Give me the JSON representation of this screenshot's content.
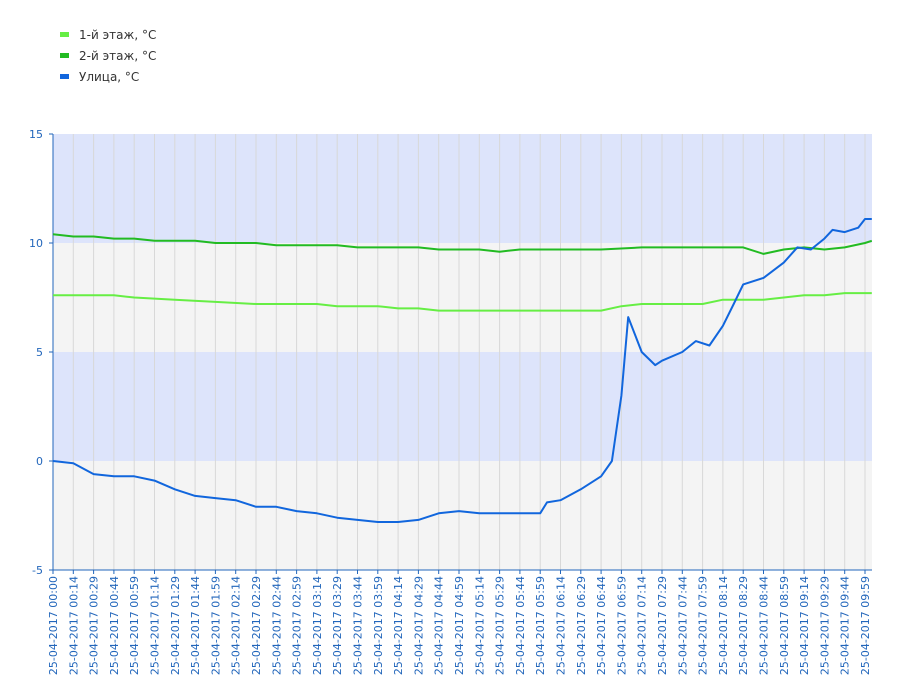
{
  "chart_data": {
    "type": "line",
    "title": "",
    "xlabel": "",
    "ylabel": "",
    "ylim": [
      -5,
      15
    ],
    "yticks": [
      15,
      10,
      5,
      0,
      -5
    ],
    "x_tick_labels": [
      "25-04-2017 00:00",
      "25-04-2017 00:14",
      "25-04-2017 00:29",
      "25-04-2017 00:44",
      "25-04-2017 00:59",
      "25-04-2017 01:14",
      "25-04-2017 01:29",
      "25-04-2017 01:44",
      "25-04-2017 01:59",
      "25-04-2017 02:14",
      "25-04-2017 02:29",
      "25-04-2017 02:44",
      "25-04-2017 02:59",
      "25-04-2017 03:14",
      "25-04-2017 03:29",
      "25-04-2017 03:44",
      "25-04-2017 03:59",
      "25-04-2017 04:14",
      "25-04-2017 04:29",
      "25-04-2017 04:44",
      "25-04-2017 04:59",
      "25-04-2017 05:14",
      "25-04-2017 05:29",
      "25-04-2017 05:44",
      "25-04-2017 05:59",
      "25-04-2017 06:14",
      "25-04-2017 06:29",
      "25-04-2017 06:44",
      "25-04-2017 06:59",
      "25-04-2017 07:14",
      "25-04-2017 07:29",
      "25-04-2017 07:44",
      "25-04-2017 07:59",
      "25-04-2017 08:14",
      "25-04-2017 08:29",
      "25-04-2017 08:44",
      "25-04-2017 08:59",
      "25-04-2017 09:14",
      "25-04-2017 09:29",
      "25-04-2017 09:44",
      "25-04-2017 09:59"
    ],
    "grid": true,
    "legend_position": "top-left",
    "band_colors": [
      "#dde4fb",
      "#f4f4f4"
    ],
    "series": [
      {
        "name": "1-й этаж, °C",
        "color": "#66ee44",
        "points": [
          [
            "25-04-2017 00:00",
            7.6
          ],
          [
            "25-04-2017 00:44",
            7.6
          ],
          [
            "25-04-2017 00:59",
            7.5
          ],
          [
            "25-04-2017 01:29",
            7.4
          ],
          [
            "25-04-2017 01:59",
            7.3
          ],
          [
            "25-04-2017 02:29",
            7.2
          ],
          [
            "25-04-2017 03:14",
            7.2
          ],
          [
            "25-04-2017 03:29",
            7.1
          ],
          [
            "25-04-2017 03:59",
            7.1
          ],
          [
            "25-04-2017 04:14",
            7.0
          ],
          [
            "25-04-2017 04:29",
            7.0
          ],
          [
            "25-04-2017 04:44",
            6.9
          ],
          [
            "25-04-2017 05:14",
            6.9
          ],
          [
            "25-04-2017 05:59",
            6.9
          ],
          [
            "25-04-2017 06:44",
            6.9
          ],
          [
            "25-04-2017 06:59",
            7.1
          ],
          [
            "25-04-2017 07:14",
            7.2
          ],
          [
            "25-04-2017 07:44",
            7.2
          ],
          [
            "25-04-2017 07:59",
            7.2
          ],
          [
            "25-04-2017 08:14",
            7.4
          ],
          [
            "25-04-2017 08:29",
            7.4
          ],
          [
            "25-04-2017 08:44",
            7.4
          ],
          [
            "25-04-2017 08:59",
            7.5
          ],
          [
            "25-04-2017 09:14",
            7.6
          ],
          [
            "25-04-2017 09:29",
            7.6
          ],
          [
            "25-04-2017 09:44",
            7.7
          ],
          [
            "25-04-2017 09:59",
            7.7
          ],
          [
            "25-04-2017 10:04",
            7.7
          ]
        ]
      },
      {
        "name": "2-й этаж, °C",
        "color": "#22bb22",
        "points": [
          [
            "25-04-2017 00:00",
            10.4
          ],
          [
            "25-04-2017 00:14",
            10.3
          ],
          [
            "25-04-2017 00:29",
            10.3
          ],
          [
            "25-04-2017 00:44",
            10.2
          ],
          [
            "25-04-2017 00:59",
            10.2
          ],
          [
            "25-04-2017 01:14",
            10.1
          ],
          [
            "25-04-2017 01:44",
            10.1
          ],
          [
            "25-04-2017 01:59",
            10.0
          ],
          [
            "25-04-2017 02:29",
            10.0
          ],
          [
            "25-04-2017 02:44",
            9.9
          ],
          [
            "25-04-2017 03:29",
            9.9
          ],
          [
            "25-04-2017 03:44",
            9.8
          ],
          [
            "25-04-2017 04:29",
            9.8
          ],
          [
            "25-04-2017 04:44",
            9.7
          ],
          [
            "25-04-2017 05:14",
            9.7
          ],
          [
            "25-04-2017 05:29",
            9.6
          ],
          [
            "25-04-2017 05:44",
            9.7
          ],
          [
            "25-04-2017 06:44",
            9.7
          ],
          [
            "25-04-2017 07:14",
            9.8
          ],
          [
            "25-04-2017 07:59",
            9.8
          ],
          [
            "25-04-2017 08:29",
            9.8
          ],
          [
            "25-04-2017 08:44",
            9.5
          ],
          [
            "25-04-2017 08:59",
            9.7
          ],
          [
            "25-04-2017 09:14",
            9.8
          ],
          [
            "25-04-2017 09:29",
            9.7
          ],
          [
            "25-04-2017 09:44",
            9.8
          ],
          [
            "25-04-2017 09:59",
            10.0
          ],
          [
            "25-04-2017 10:04",
            10.1
          ]
        ]
      },
      {
        "name": "Улица, °C",
        "color": "#1166dd",
        "points": [
          [
            "25-04-2017 00:00",
            0.0
          ],
          [
            "25-04-2017 00:14",
            -0.1
          ],
          [
            "25-04-2017 00:29",
            -0.6
          ],
          [
            "25-04-2017 00:44",
            -0.7
          ],
          [
            "25-04-2017 00:59",
            -0.7
          ],
          [
            "25-04-2017 01:14",
            -0.9
          ],
          [
            "25-04-2017 01:29",
            -1.3
          ],
          [
            "25-04-2017 01:44",
            -1.6
          ],
          [
            "25-04-2017 01:59",
            -1.7
          ],
          [
            "25-04-2017 02:14",
            -1.8
          ],
          [
            "25-04-2017 02:29",
            -2.1
          ],
          [
            "25-04-2017 02:44",
            -2.1
          ],
          [
            "25-04-2017 02:59",
            -2.3
          ],
          [
            "25-04-2017 03:14",
            -2.4
          ],
          [
            "25-04-2017 03:29",
            -2.6
          ],
          [
            "25-04-2017 03:44",
            -2.7
          ],
          [
            "25-04-2017 03:59",
            -2.8
          ],
          [
            "25-04-2017 04:14",
            -2.8
          ],
          [
            "25-04-2017 04:29",
            -2.7
          ],
          [
            "25-04-2017 04:44",
            -2.4
          ],
          [
            "25-04-2017 04:59",
            -2.3
          ],
          [
            "25-04-2017 05:14",
            -2.4
          ],
          [
            "25-04-2017 05:44",
            -2.4
          ],
          [
            "25-04-2017 05:59",
            -2.4
          ],
          [
            "25-04-2017 06:04",
            -1.9
          ],
          [
            "25-04-2017 06:14",
            -1.8
          ],
          [
            "25-04-2017 06:29",
            -1.3
          ],
          [
            "25-04-2017 06:44",
            -0.7
          ],
          [
            "25-04-2017 06:52",
            0.0
          ],
          [
            "25-04-2017 06:59",
            3.0
          ],
          [
            "25-04-2017 07:04",
            6.6
          ],
          [
            "25-04-2017 07:14",
            5.0
          ],
          [
            "25-04-2017 07:24",
            4.4
          ],
          [
            "25-04-2017 07:29",
            4.6
          ],
          [
            "25-04-2017 07:44",
            5.0
          ],
          [
            "25-04-2017 07:54",
            5.5
          ],
          [
            "25-04-2017 08:04",
            5.3
          ],
          [
            "25-04-2017 08:14",
            6.2
          ],
          [
            "25-04-2017 08:22",
            7.2
          ],
          [
            "25-04-2017 08:29",
            8.1
          ],
          [
            "25-04-2017 08:44",
            8.4
          ],
          [
            "25-04-2017 08:59",
            9.1
          ],
          [
            "25-04-2017 09:09",
            9.8
          ],
          [
            "25-04-2017 09:19",
            9.7
          ],
          [
            "25-04-2017 09:29",
            10.2
          ],
          [
            "25-04-2017 09:35",
            10.6
          ],
          [
            "25-04-2017 09:44",
            10.5
          ],
          [
            "25-04-2017 09:54",
            10.7
          ],
          [
            "25-04-2017 09:59",
            11.1
          ],
          [
            "25-04-2017 10:04",
            11.1
          ]
        ]
      }
    ]
  }
}
